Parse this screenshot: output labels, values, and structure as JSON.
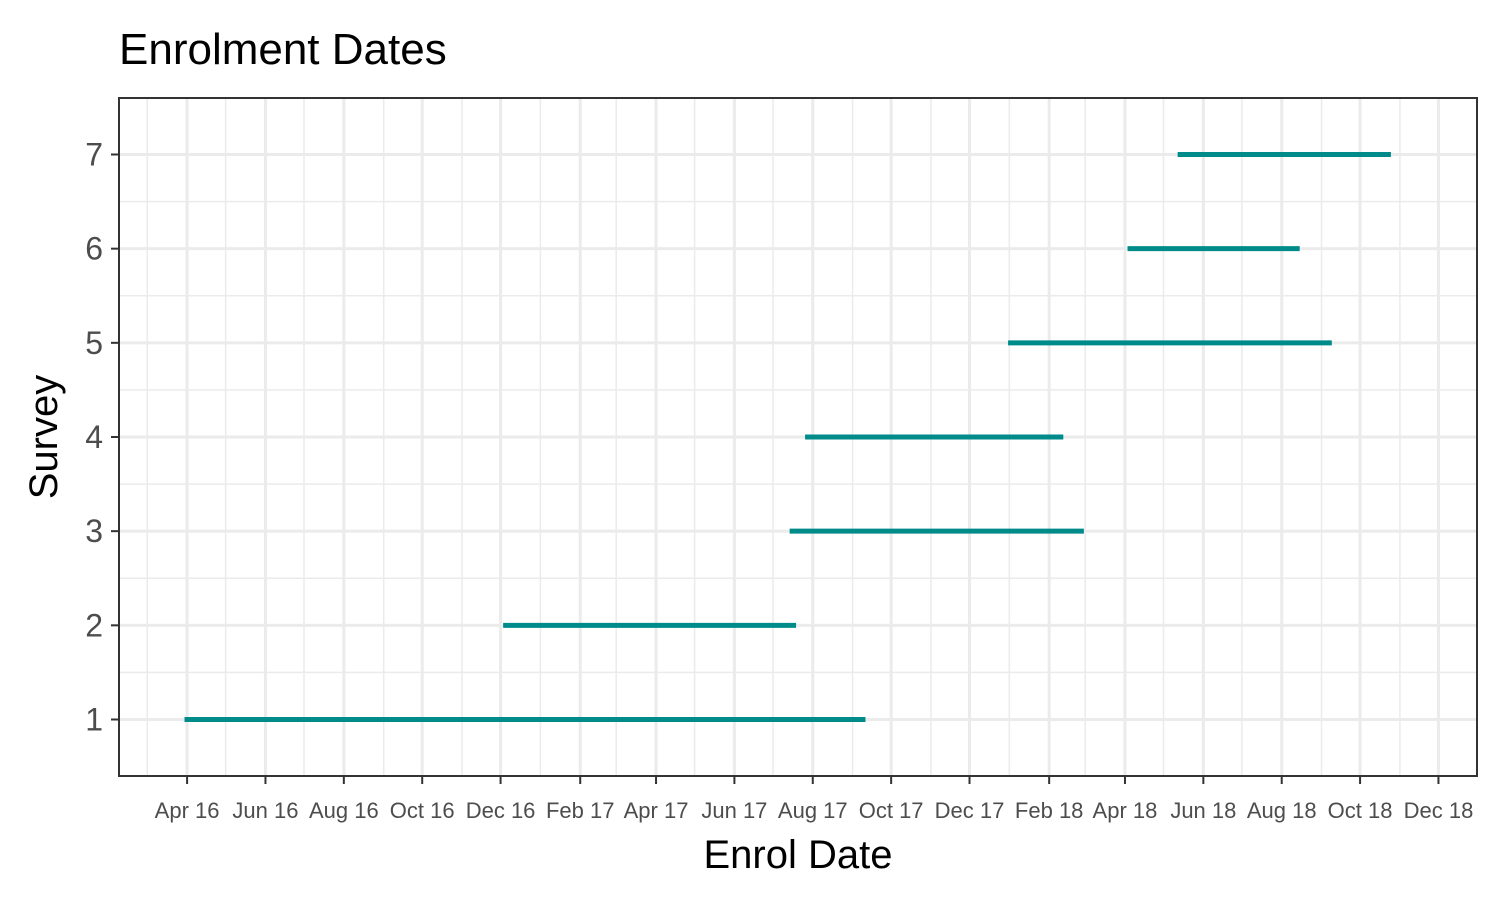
{
  "chart_data": {
    "type": "segment",
    "title": "Enrolment Dates",
    "xlabel": "Enrol Date",
    "ylabel": "Survey",
    "x_axis": {
      "kind": "date",
      "range": [
        "2016-02-08",
        "2018-12-31"
      ],
      "ticks": [
        {
          "date": "2016-04-01",
          "label": "Apr 16"
        },
        {
          "date": "2016-06-01",
          "label": "Jun 16"
        },
        {
          "date": "2016-08-01",
          "label": "Aug 16"
        },
        {
          "date": "2016-10-01",
          "label": "Oct 16"
        },
        {
          "date": "2016-12-01",
          "label": "Dec 16"
        },
        {
          "date": "2017-02-01",
          "label": "Feb 17"
        },
        {
          "date": "2017-04-01",
          "label": "Apr 17"
        },
        {
          "date": "2017-06-01",
          "label": "Jun 17"
        },
        {
          "date": "2017-08-01",
          "label": "Aug 17"
        },
        {
          "date": "2017-10-01",
          "label": "Oct 17"
        },
        {
          "date": "2017-12-01",
          "label": "Dec 17"
        },
        {
          "date": "2018-02-01",
          "label": "Feb 18"
        },
        {
          "date": "2018-04-01",
          "label": "Apr 18"
        },
        {
          "date": "2018-06-01",
          "label": "Jun 18"
        },
        {
          "date": "2018-08-01",
          "label": "Aug 18"
        },
        {
          "date": "2018-10-01",
          "label": "Oct 18"
        },
        {
          "date": "2018-12-01",
          "label": "Dec 18"
        }
      ]
    },
    "y_axis": {
      "range": [
        0.4,
        7.6
      ],
      "ticks": [
        {
          "value": 1,
          "label": "1"
        },
        {
          "value": 2,
          "label": "2"
        },
        {
          "value": 3,
          "label": "3"
        },
        {
          "value": 4,
          "label": "4"
        },
        {
          "value": 5,
          "label": "5"
        },
        {
          "value": 6,
          "label": "6"
        },
        {
          "value": 7,
          "label": "7"
        }
      ]
    },
    "grid": true,
    "legend": "none",
    "segment_color": "#008b8b",
    "segments": [
      {
        "survey": 1,
        "start": "2016-03-30",
        "end": "2017-09-11"
      },
      {
        "survey": 2,
        "start": "2016-12-03",
        "end": "2017-07-19"
      },
      {
        "survey": 3,
        "start": "2017-07-14",
        "end": "2018-02-28"
      },
      {
        "survey": 4,
        "start": "2017-07-26",
        "end": "2018-02-12"
      },
      {
        "survey": 5,
        "start": "2017-12-31",
        "end": "2018-09-09"
      },
      {
        "survey": 6,
        "start": "2018-04-03",
        "end": "2018-08-15"
      },
      {
        "survey": 7,
        "start": "2018-05-12",
        "end": "2018-10-25"
      }
    ]
  }
}
